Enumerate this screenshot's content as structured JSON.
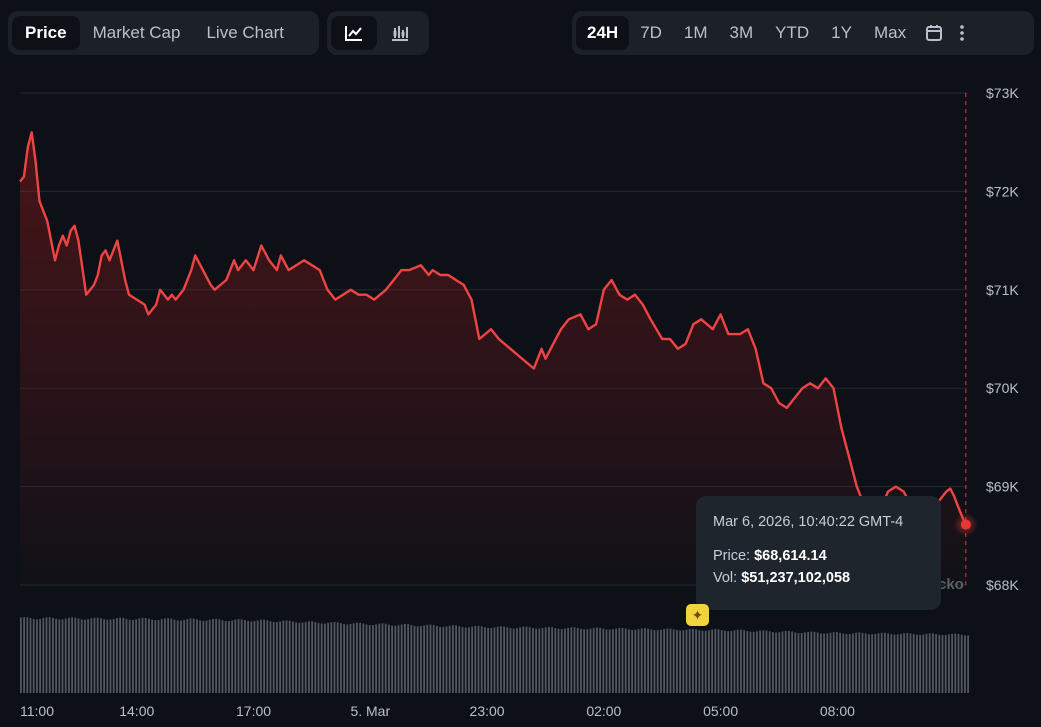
{
  "toolbar": {
    "chart_types": [
      "Price",
      "Market Cap",
      "Live Chart"
    ],
    "active_chart_type": "Price",
    "styles": [
      {
        "icon": "line-chart-icon"
      },
      {
        "icon": "candlestick-chart-icon"
      }
    ],
    "ranges": [
      "24H",
      "7D",
      "1M",
      "3M",
      "YTD",
      "1Y",
      "Max"
    ],
    "active_range": "24H",
    "extra_icons": [
      "calendar-icon",
      "more-vertical-icon"
    ]
  },
  "tooltip": {
    "date": "Mar 6, 2026, 10:40:22 GMT-4",
    "price_label": "Price:",
    "price_value": "$68,614.14",
    "vol_label": "Vol:",
    "vol_value": "$51,237,102,058"
  },
  "watermark": "cko",
  "colors": {
    "line": "#ef4444",
    "marker": "#e53935",
    "background": "#0d1117",
    "volume": "#8b929c"
  },
  "chart_data": {
    "type": "area",
    "title": "",
    "xlabel": "",
    "ylabel": "",
    "y_ticks": [
      73000,
      72000,
      71000,
      70000,
      69000,
      68000
    ],
    "y_tick_labels": [
      "$73K",
      "$72K",
      "$71K",
      "$70K",
      "$69K",
      "$68K"
    ],
    "ylim": [
      68000,
      73000
    ],
    "xlim": [
      0,
      24.33
    ],
    "x_ticks": [
      0,
      3,
      6,
      9,
      12,
      15,
      18,
      21
    ],
    "x_tick_labels": [
      "11:00",
      "14:00",
      "17:00",
      "5. Mar",
      "23:00",
      "02:00",
      "05:00",
      "08:00"
    ],
    "x_unit": "hours since 11:00 (Mar 4)",
    "grid": true,
    "series": [
      {
        "values_x": [
          0.0,
          0.1,
          0.2,
          0.3,
          0.4,
          0.5,
          0.7,
          0.9,
          1.0,
          1.1,
          1.2,
          1.3,
          1.4,
          1.5,
          1.7,
          1.9,
          2.0,
          2.1,
          2.2,
          2.3,
          2.5,
          2.7,
          2.8,
          3.0,
          3.2,
          3.3,
          3.5,
          3.6,
          3.8,
          3.9,
          4.0,
          4.2,
          4.4,
          4.5,
          4.7,
          4.9,
          5.0,
          5.3,
          5.5,
          5.6,
          5.8,
          6.0,
          6.2,
          6.4,
          6.6,
          6.7,
          6.9,
          7.1,
          7.3,
          7.5,
          7.7,
          7.9,
          8.1,
          8.3,
          8.5,
          8.7,
          8.9,
          9.1,
          9.4,
          9.6,
          9.8,
          10.0,
          10.3,
          10.5,
          10.6,
          10.8,
          11.0,
          11.2,
          11.4,
          11.6,
          11.8,
          12.1,
          12.3,
          12.6,
          12.9,
          13.2,
          13.4,
          13.5,
          13.7,
          13.9,
          14.1,
          14.4,
          14.6,
          14.8,
          15.0,
          15.2,
          15.4,
          15.6,
          15.8,
          16.0,
          16.2,
          16.5,
          16.7,
          16.9,
          17.1,
          17.3,
          17.5,
          17.8,
          18.0,
          18.2,
          18.5,
          18.7,
          18.9,
          19.1,
          19.3,
          19.5,
          19.7,
          19.9,
          20.1,
          20.3,
          20.5,
          20.7,
          20.9,
          21.1,
          21.3,
          21.5,
          21.7,
          21.9,
          22.1,
          22.3,
          22.5,
          22.7,
          22.9,
          23.0,
          23.1,
          23.2,
          23.3,
          23.4,
          23.5,
          23.6,
          23.7,
          23.8,
          23.9,
          24.0,
          24.1,
          24.2,
          24.3
        ],
        "values_y": [
          72100,
          72150,
          72450,
          72600,
          72300,
          71900,
          71700,
          71300,
          71450,
          71550,
          71450,
          71600,
          71650,
          71500,
          70950,
          71050,
          71150,
          71350,
          71400,
          71300,
          71500,
          71100,
          70950,
          70900,
          70850,
          70750,
          70850,
          71000,
          70900,
          70950,
          70900,
          71000,
          71200,
          71350,
          71200,
          71050,
          71000,
          71100,
          71300,
          71200,
          71300,
          71200,
          71450,
          71300,
          71200,
          71350,
          71200,
          71250,
          71300,
          71250,
          71200,
          71000,
          70900,
          70950,
          71000,
          70950,
          70950,
          70900,
          71000,
          71100,
          71200,
          71200,
          71250,
          71150,
          71200,
          71150,
          71150,
          71100,
          71050,
          70900,
          70500,
          70600,
          70500,
          70400,
          70300,
          70200,
          70400,
          70300,
          70450,
          70600,
          70700,
          70750,
          70600,
          70650,
          71000,
          71100,
          70950,
          70900,
          70950,
          70850,
          70700,
          70500,
          70500,
          70400,
          70450,
          70650,
          70700,
          70600,
          70750,
          70550,
          70550,
          70600,
          70400,
          70050,
          70000,
          69850,
          69800,
          69900,
          70000,
          70050,
          70000,
          70100,
          70000,
          69600,
          69300,
          69000,
          68800,
          68700,
          68750,
          68950,
          69000,
          68950,
          68800,
          68650,
          68614,
          68650,
          68700,
          68750,
          68800,
          68850,
          68900,
          68950,
          68980,
          68900,
          68800,
          68700,
          68614
        ]
      }
    ],
    "volume": {
      "values_x": [
        0,
        3,
        6,
        9,
        12,
        15,
        18,
        21,
        24.3
      ],
      "values_rel": [
        1.0,
        0.99,
        0.97,
        0.92,
        0.88,
        0.86,
        0.84,
        0.8,
        0.78
      ]
    }
  }
}
